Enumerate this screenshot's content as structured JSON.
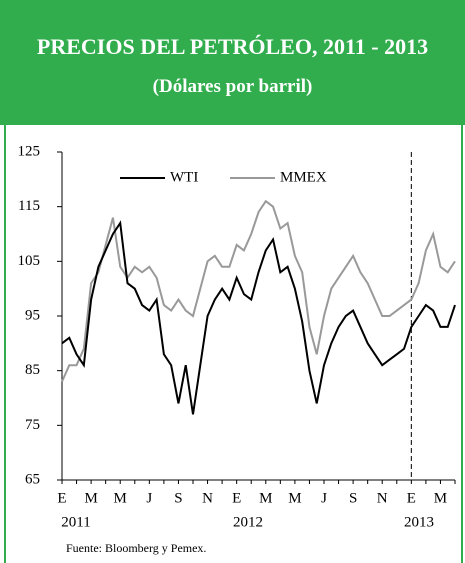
{
  "chart_data": {
    "type": "line",
    "title": "PRECIOS DEL PETRÓLEO, 2011 - 2013",
    "subtitle": "(Dólares por barril)",
    "source": "Fuente: Bloomberg y Pemex.",
    "categories": [
      "E",
      null,
      null,
      null,
      "M",
      null,
      null,
      null,
      "M",
      null,
      null,
      null,
      "J",
      null,
      null,
      null,
      "S",
      null,
      null,
      null,
      "N",
      null,
      null,
      null,
      "E",
      null,
      null,
      null,
      "M",
      null,
      null,
      null,
      "M",
      null,
      null,
      null,
      "J",
      null,
      null,
      null,
      "S",
      null,
      null,
      null,
      "N",
      null,
      null,
      null,
      "E",
      null,
      null,
      null,
      "M",
      null,
      null
    ],
    "year_labels": [
      "2011",
      "2012",
      "2013"
    ],
    "series": [
      {
        "name": "WTI",
        "color": "#000000",
        "values": [
          90,
          91,
          88,
          86,
          98,
          104,
          107,
          110,
          112,
          101,
          100,
          97,
          96,
          98,
          88,
          86,
          79,
          86,
          77,
          86,
          95,
          98,
          100,
          98,
          102,
          99,
          98,
          103,
          107,
          109,
          103,
          104,
          100,
          94,
          85,
          79,
          86,
          90,
          93,
          95,
          96,
          93,
          90,
          88,
          86,
          87,
          88,
          89,
          93,
          95,
          97,
          96,
          93,
          93,
          97
        ]
      },
      {
        "name": "MMEX",
        "color": "#999999",
        "values": [
          83,
          86,
          86,
          89,
          101,
          103,
          108,
          113,
          104,
          102,
          104,
          103,
          104,
          102,
          97,
          96,
          98,
          96,
          95,
          100,
          105,
          106,
          104,
          104,
          108,
          107,
          110,
          114,
          116,
          115,
          111,
          112,
          106,
          103,
          93,
          88,
          95,
          100,
          102,
          104,
          106,
          103,
          101,
          98,
          95,
          95,
          96,
          97,
          98,
          101,
          107,
          110,
          104,
          103,
          105
        ]
      }
    ],
    "ylim": [
      65,
      125
    ],
    "yticks": [
      65,
      75,
      85,
      95,
      105,
      115,
      125
    ]
  }
}
